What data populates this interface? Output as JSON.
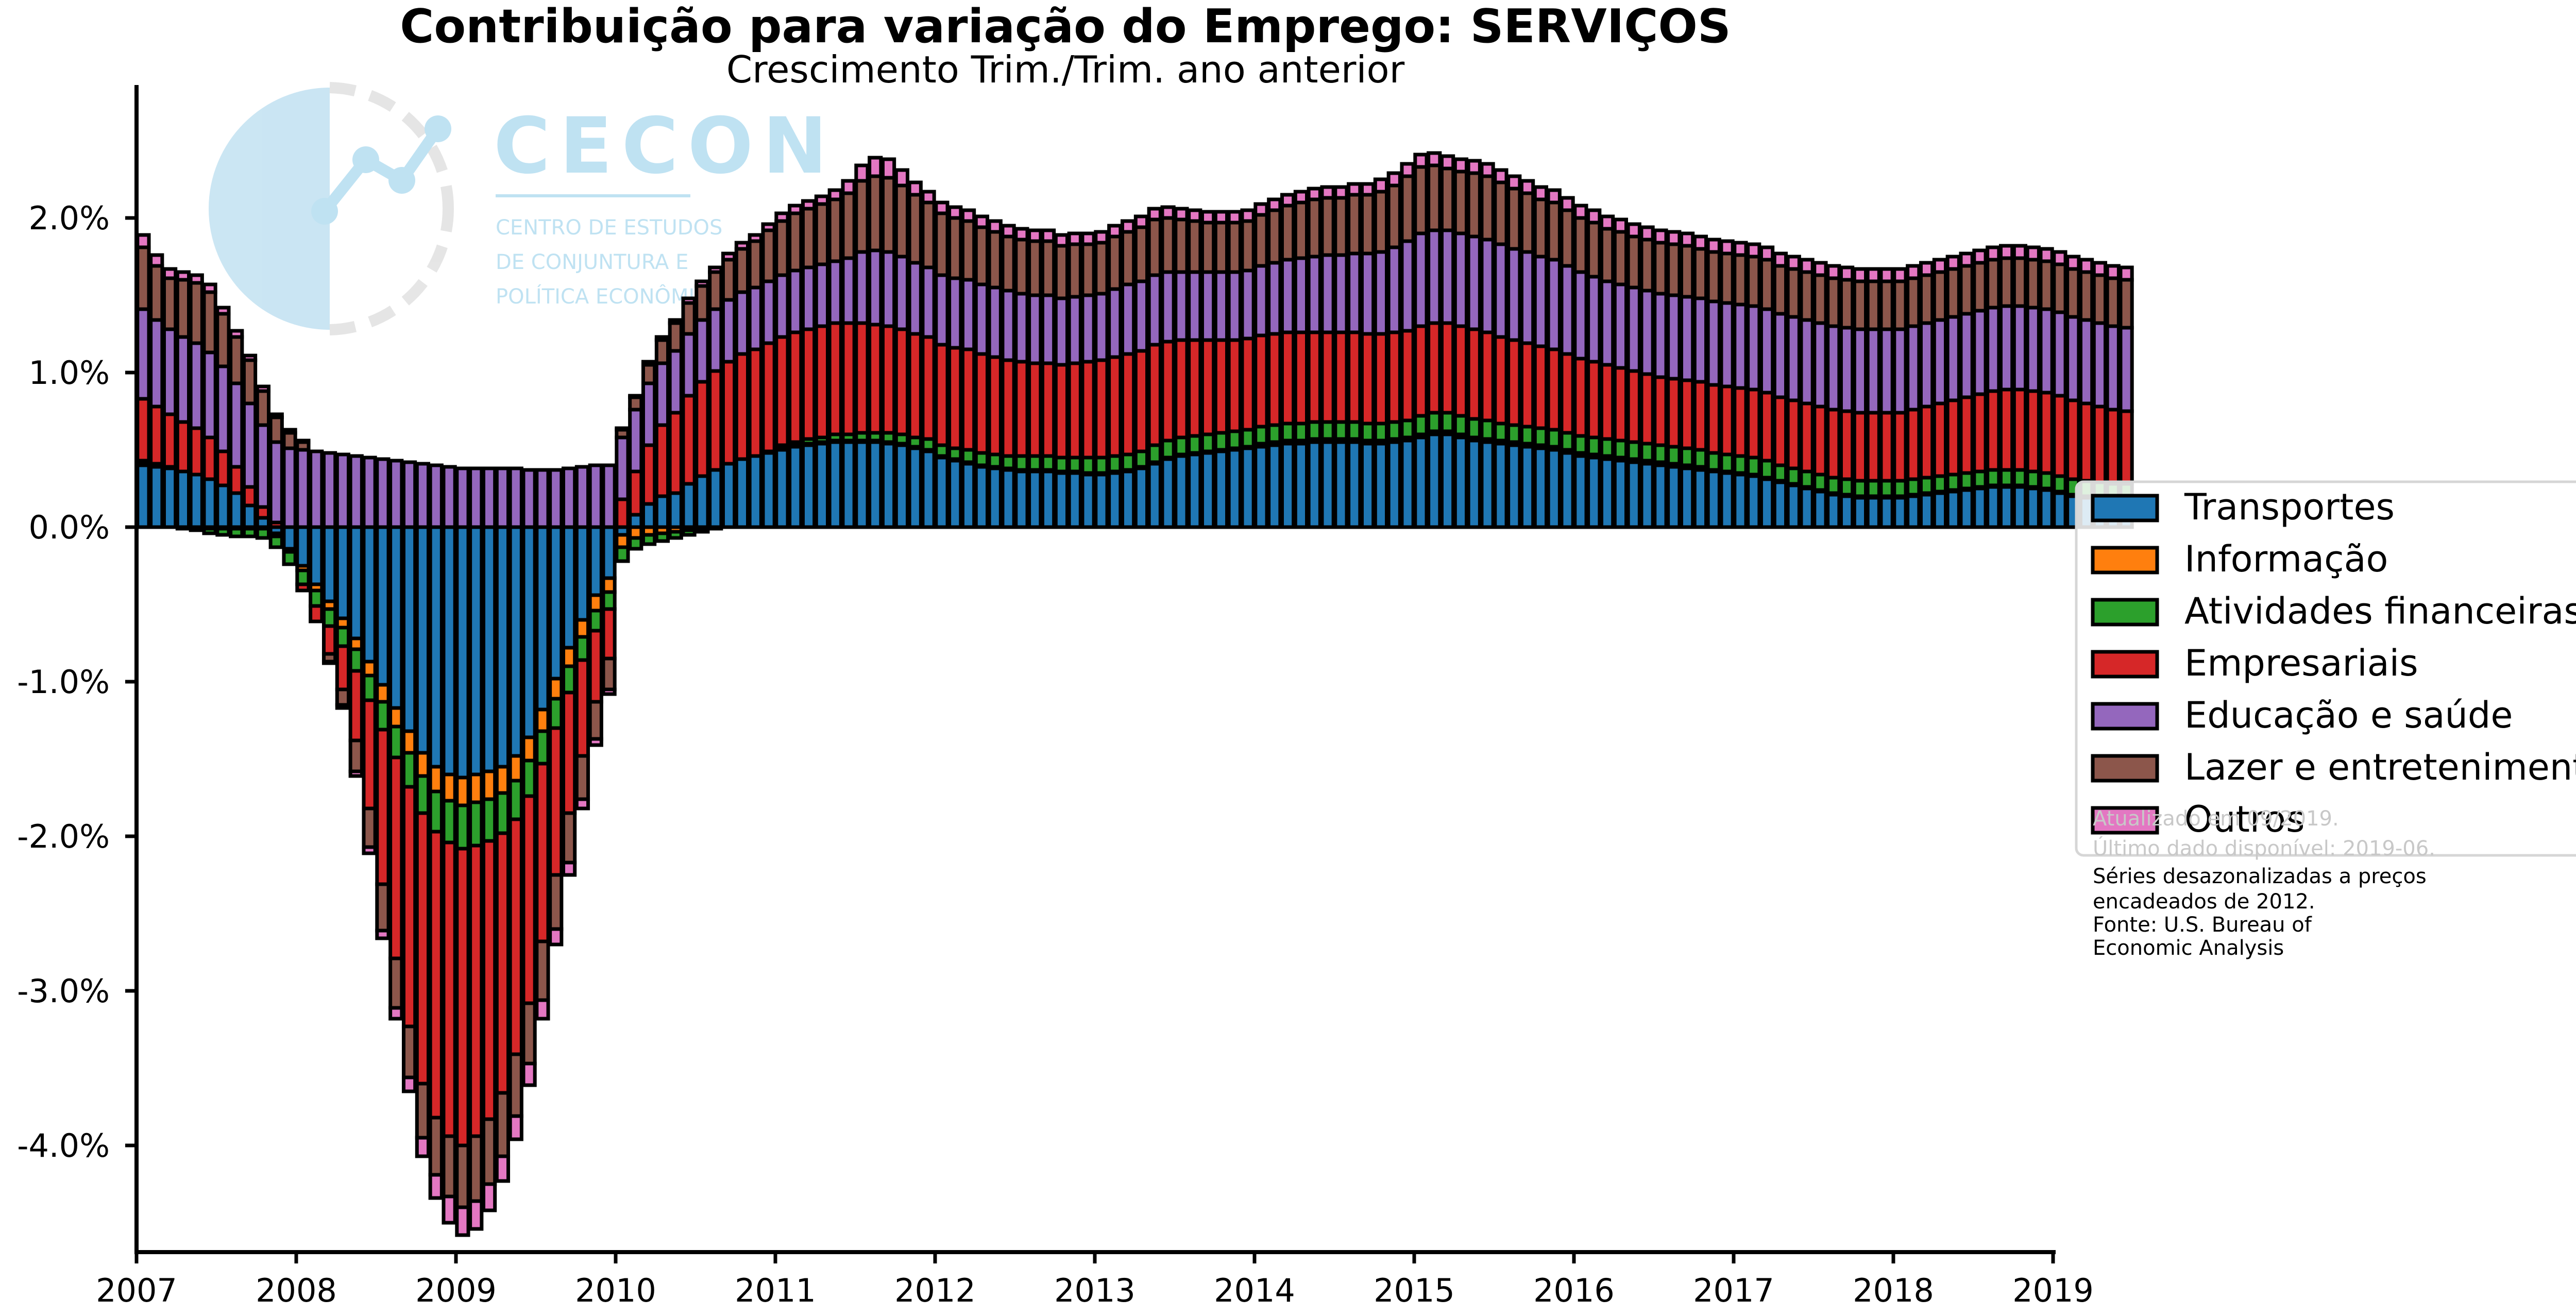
{
  "logo": {
    "name": "CECON",
    "lines": [
      "CENTRO DE ESTUDOS",
      "DE CONJUNTURA E",
      "POLÍTICA ECONÔMICA"
    ]
  },
  "notes": {
    "faint": [
      "Atualizado em 09/2019.",
      "Último dado disponível: 2019-06."
    ],
    "lines": [
      "Séries desazonalizadas a preços",
      "encadeados de 2012.",
      "Fonte: U.S. Bureau of",
      "Economic Analysis"
    ]
  },
  "chart_data": {
    "type": "bar",
    "stacked": true,
    "title": "Contribuição para variação do Emprego: SERVIÇOS",
    "subtitle": "Crescimento Trim./Trim. ano anterior",
    "frequency": "monthly",
    "start": "2007-01",
    "end": "2019-06",
    "x_ticks": [
      "2007",
      "2008",
      "2009",
      "2010",
      "2011",
      "2012",
      "2013",
      "2014",
      "2015",
      "2016",
      "2017",
      "2018",
      "2019"
    ],
    "y_ticks": [
      "2.0%",
      "1.0%",
      "0.0%",
      "-1.0%",
      "-2.0%",
      "-3.0%",
      "-4.0%"
    ],
    "y_tick_values": [
      2.0,
      1.0,
      0.0,
      -1.0,
      -2.0,
      -3.0,
      -4.0
    ],
    "ylim": [
      -4.7,
      2.85
    ],
    "legend_position": "right",
    "series_colors": [
      "#1f77b4",
      "#ff7f0e",
      "#2ca02c",
      "#d62728",
      "#9467bd",
      "#8c564b",
      "#e377c2"
    ],
    "series": [
      {
        "name": "Transportes",
        "values": [
          0.4,
          0.39,
          0.38,
          0.36,
          0.34,
          0.31,
          0.27,
          0.22,
          0.14,
          0.06,
          -0.04,
          -0.14,
          -0.25,
          -0.37,
          -0.48,
          -0.59,
          -0.72,
          -0.87,
          -1.02,
          -1.17,
          -1.32,
          -1.46,
          -1.55,
          -1.6,
          -1.62,
          -1.6,
          -1.58,
          -1.55,
          -1.48,
          -1.36,
          -1.18,
          -0.98,
          -0.78,
          -0.6,
          -0.44,
          -0.33,
          -0.05,
          0.08,
          0.15,
          0.2,
          0.22,
          0.28,
          0.33,
          0.37,
          0.41,
          0.44,
          0.46,
          0.48,
          0.5,
          0.52,
          0.53,
          0.54,
          0.55,
          0.55,
          0.55,
          0.55,
          0.54,
          0.53,
          0.51,
          0.49,
          0.45,
          0.43,
          0.41,
          0.39,
          0.38,
          0.37,
          0.36,
          0.36,
          0.36,
          0.35,
          0.35,
          0.34,
          0.34,
          0.35,
          0.36,
          0.38,
          0.41,
          0.44,
          0.46,
          0.47,
          0.48,
          0.49,
          0.5,
          0.51,
          0.52,
          0.53,
          0.54,
          0.54,
          0.55,
          0.55,
          0.55,
          0.55,
          0.54,
          0.54,
          0.55,
          0.56,
          0.58,
          0.6,
          0.6,
          0.58,
          0.56,
          0.55,
          0.54,
          0.53,
          0.52,
          0.51,
          0.5,
          0.48,
          0.46,
          0.45,
          0.44,
          0.43,
          0.42,
          0.41,
          0.4,
          0.39,
          0.38,
          0.37,
          0.36,
          0.35,
          0.34,
          0.33,
          0.31,
          0.29,
          0.27,
          0.25,
          0.23,
          0.21,
          0.2,
          0.19,
          0.19,
          0.19,
          0.19,
          0.2,
          0.21,
          0.22,
          0.23,
          0.24,
          0.25,
          0.26,
          0.26,
          0.26,
          0.25,
          0.24,
          0.22,
          0.2,
          0.19,
          0.18,
          0.17,
          0.17
        ]
      },
      {
        "name": "Informação",
        "values": [
          0.01,
          0.01,
          0.01,
          0.0,
          0.0,
          -0.01,
          -0.01,
          -0.01,
          -0.01,
          -0.01,
          -0.02,
          -0.02,
          -0.03,
          -0.04,
          -0.05,
          -0.06,
          -0.07,
          -0.09,
          -0.11,
          -0.12,
          -0.14,
          -0.15,
          -0.16,
          -0.17,
          -0.18,
          -0.18,
          -0.18,
          -0.17,
          -0.16,
          -0.15,
          -0.14,
          -0.13,
          -0.12,
          -0.11,
          -0.1,
          -0.09,
          -0.08,
          -0.07,
          -0.05,
          -0.04,
          -0.03,
          -0.02,
          -0.01,
          0.0,
          0.0,
          0.0,
          0.0,
          0.0,
          0.01,
          0.01,
          0.01,
          0.01,
          0.01,
          0.01,
          0.01,
          0.01,
          0.01,
          0.01,
          0.01,
          0.01,
          0.01,
          0.01,
          0.01,
          0.01,
          0.01,
          0.01,
          0.01,
          0.01,
          0.01,
          0.01,
          0.01,
          0.01,
          0.01,
          0.01,
          0.01,
          0.01,
          0.01,
          0.01,
          0.01,
          0.01,
          0.01,
          0.01,
          0.01,
          0.01,
          0.02,
          0.02,
          0.02,
          0.02,
          0.02,
          0.02,
          0.02,
          0.02,
          0.02,
          0.02,
          0.02,
          0.02,
          0.02,
          0.02,
          0.02,
          0.02,
          0.02,
          0.02,
          0.02,
          0.02,
          0.02,
          0.02,
          0.02,
          0.02,
          0.02,
          0.02,
          0.02,
          0.02,
          0.02,
          0.02,
          0.02,
          0.02,
          0.02,
          0.02,
          0.01,
          0.01,
          0.01,
          0.01,
          0.01,
          0.01,
          0.01,
          0.01,
          0.01,
          0.01,
          0.01,
          0.01,
          0.01,
          0.01,
          0.01,
          0.01,
          0.01,
          0.01,
          0.01,
          0.01,
          0.01,
          0.01,
          0.01,
          0.01,
          0.01,
          0.01,
          0.01,
          0.01,
          0.01,
          0.01,
          0.01,
          0.01
        ]
      },
      {
        "name": "Atividades financeiras",
        "values": [
          0.02,
          0.01,
          0.0,
          -0.01,
          -0.02,
          -0.03,
          -0.04,
          -0.05,
          -0.05,
          -0.06,
          -0.07,
          -0.08,
          -0.09,
          -0.1,
          -0.11,
          -0.12,
          -0.14,
          -0.16,
          -0.18,
          -0.2,
          -0.22,
          -0.24,
          -0.26,
          -0.27,
          -0.28,
          -0.28,
          -0.27,
          -0.26,
          -0.25,
          -0.23,
          -0.21,
          -0.19,
          -0.17,
          -0.15,
          -0.13,
          -0.11,
          -0.09,
          -0.07,
          -0.06,
          -0.05,
          -0.04,
          -0.03,
          -0.02,
          -0.01,
          0.0,
          0.0,
          0.0,
          0.01,
          0.02,
          0.02,
          0.03,
          0.03,
          0.04,
          0.04,
          0.05,
          0.05,
          0.06,
          0.06,
          0.06,
          0.07,
          0.07,
          0.07,
          0.08,
          0.08,
          0.08,
          0.08,
          0.09,
          0.09,
          0.09,
          0.09,
          0.09,
          0.1,
          0.1,
          0.1,
          0.1,
          0.1,
          0.11,
          0.11,
          0.11,
          0.11,
          0.11,
          0.11,
          0.11,
          0.11,
          0.11,
          0.11,
          0.11,
          0.11,
          0.11,
          0.11,
          0.11,
          0.11,
          0.11,
          0.11,
          0.11,
          0.11,
          0.12,
          0.12,
          0.12,
          0.12,
          0.12,
          0.12,
          0.11,
          0.11,
          0.11,
          0.11,
          0.11,
          0.11,
          0.11,
          0.11,
          0.11,
          0.11,
          0.11,
          0.11,
          0.11,
          0.11,
          0.11,
          0.11,
          0.11,
          0.11,
          0.11,
          0.11,
          0.11,
          0.1,
          0.1,
          0.1,
          0.1,
          0.1,
          0.1,
          0.1,
          0.1,
          0.1,
          0.1,
          0.1,
          0.1,
          0.1,
          0.1,
          0.1,
          0.1,
          0.1,
          0.1,
          0.1,
          0.1,
          0.1,
          0.1,
          0.1,
          0.1,
          0.1,
          0.1,
          0.1
        ]
      },
      {
        "name": "Empresariais",
        "values": [
          0.4,
          0.37,
          0.34,
          0.32,
          0.3,
          0.27,
          0.22,
          0.17,
          0.12,
          0.07,
          0.03,
          0.0,
          -0.04,
          -0.1,
          -0.18,
          -0.28,
          -0.45,
          -0.7,
          -1.0,
          -1.3,
          -1.55,
          -1.75,
          -1.85,
          -1.9,
          -1.92,
          -1.88,
          -1.8,
          -1.68,
          -1.52,
          -1.34,
          -1.15,
          -0.95,
          -0.78,
          -0.62,
          -0.46,
          -0.32,
          0.18,
          0.28,
          0.38,
          0.46,
          0.52,
          0.57,
          0.61,
          0.64,
          0.66,
          0.68,
          0.69,
          0.7,
          0.7,
          0.71,
          0.71,
          0.72,
          0.72,
          0.72,
          0.71,
          0.7,
          0.69,
          0.68,
          0.67,
          0.66,
          0.65,
          0.65,
          0.65,
          0.64,
          0.63,
          0.62,
          0.61,
          0.6,
          0.6,
          0.6,
          0.61,
          0.62,
          0.63,
          0.64,
          0.65,
          0.65,
          0.65,
          0.64,
          0.63,
          0.62,
          0.61,
          0.6,
          0.59,
          0.59,
          0.59,
          0.59,
          0.59,
          0.59,
          0.58,
          0.58,
          0.58,
          0.58,
          0.58,
          0.58,
          0.58,
          0.58,
          0.58,
          0.58,
          0.58,
          0.58,
          0.58,
          0.57,
          0.56,
          0.55,
          0.54,
          0.53,
          0.52,
          0.51,
          0.5,
          0.49,
          0.48,
          0.47,
          0.46,
          0.45,
          0.44,
          0.44,
          0.44,
          0.44,
          0.44,
          0.44,
          0.44,
          0.44,
          0.44,
          0.44,
          0.44,
          0.44,
          0.44,
          0.44,
          0.44,
          0.44,
          0.44,
          0.44,
          0.44,
          0.45,
          0.46,
          0.47,
          0.48,
          0.49,
          0.5,
          0.51,
          0.52,
          0.52,
          0.52,
          0.52,
          0.52,
          0.51,
          0.5,
          0.49,
          0.48,
          0.47
        ]
      },
      {
        "name": "Educação e saúde",
        "values": [
          0.58,
          0.56,
          0.55,
          0.55,
          0.55,
          0.55,
          0.55,
          0.54,
          0.54,
          0.53,
          0.52,
          0.51,
          0.5,
          0.49,
          0.48,
          0.47,
          0.46,
          0.45,
          0.44,
          0.43,
          0.42,
          0.41,
          0.4,
          0.39,
          0.38,
          0.38,
          0.38,
          0.38,
          0.38,
          0.37,
          0.37,
          0.37,
          0.38,
          0.39,
          0.4,
          0.4,
          0.4,
          0.4,
          0.4,
          0.4,
          0.4,
          0.4,
          0.4,
          0.4,
          0.4,
          0.4,
          0.4,
          0.4,
          0.4,
          0.4,
          0.4,
          0.4,
          0.4,
          0.42,
          0.46,
          0.48,
          0.48,
          0.47,
          0.46,
          0.45,
          0.45,
          0.45,
          0.45,
          0.45,
          0.45,
          0.45,
          0.44,
          0.44,
          0.44,
          0.43,
          0.43,
          0.43,
          0.43,
          0.44,
          0.45,
          0.45,
          0.45,
          0.45,
          0.44,
          0.44,
          0.44,
          0.44,
          0.44,
          0.44,
          0.45,
          0.46,
          0.47,
          0.48,
          0.49,
          0.5,
          0.5,
          0.51,
          0.52,
          0.53,
          0.55,
          0.58,
          0.6,
          0.6,
          0.6,
          0.6,
          0.6,
          0.6,
          0.6,
          0.59,
          0.59,
          0.58,
          0.58,
          0.57,
          0.56,
          0.55,
          0.54,
          0.54,
          0.54,
          0.54,
          0.54,
          0.54,
          0.54,
          0.54,
          0.54,
          0.54,
          0.54,
          0.54,
          0.54,
          0.54,
          0.54,
          0.54,
          0.54,
          0.54,
          0.54,
          0.54,
          0.54,
          0.54,
          0.54,
          0.54,
          0.54,
          0.54,
          0.54,
          0.54,
          0.54,
          0.54,
          0.54,
          0.54,
          0.54,
          0.54,
          0.54,
          0.54,
          0.54,
          0.54,
          0.54,
          0.54
        ]
      },
      {
        "name": "Lazer e entretenimento",
        "values": [
          0.4,
          0.35,
          0.33,
          0.37,
          0.39,
          0.39,
          0.34,
          0.3,
          0.28,
          0.22,
          0.16,
          0.1,
          0.05,
          0.0,
          -0.05,
          -0.1,
          -0.2,
          -0.25,
          -0.3,
          -0.32,
          -0.33,
          -0.35,
          -0.37,
          -0.39,
          -0.4,
          -0.42,
          -0.42,
          -0.41,
          -0.4,
          -0.39,
          -0.38,
          -0.35,
          -0.32,
          -0.28,
          -0.24,
          -0.2,
          0.05,
          0.08,
          0.12,
          0.15,
          0.18,
          0.2,
          0.22,
          0.24,
          0.26,
          0.28,
          0.3,
          0.33,
          0.35,
          0.37,
          0.38,
          0.39,
          0.4,
          0.42,
          0.46,
          0.48,
          0.48,
          0.46,
          0.44,
          0.42,
          0.4,
          0.39,
          0.38,
          0.37,
          0.36,
          0.35,
          0.35,
          0.35,
          0.35,
          0.34,
          0.34,
          0.33,
          0.33,
          0.34,
          0.34,
          0.35,
          0.36,
          0.35,
          0.34,
          0.33,
          0.32,
          0.32,
          0.32,
          0.32,
          0.33,
          0.34,
          0.35,
          0.36,
          0.37,
          0.37,
          0.37,
          0.38,
          0.38,
          0.39,
          0.4,
          0.42,
          0.43,
          0.42,
          0.4,
          0.4,
          0.41,
          0.41,
          0.4,
          0.39,
          0.38,
          0.37,
          0.37,
          0.36,
          0.35,
          0.35,
          0.34,
          0.34,
          0.33,
          0.33,
          0.33,
          0.33,
          0.33,
          0.32,
          0.32,
          0.32,
          0.32,
          0.32,
          0.32,
          0.31,
          0.31,
          0.31,
          0.31,
          0.31,
          0.31,
          0.31,
          0.31,
          0.31,
          0.31,
          0.31,
          0.31,
          0.31,
          0.31,
          0.31,
          0.31,
          0.31,
          0.31,
          0.31,
          0.31,
          0.31,
          0.31,
          0.31,
          0.31,
          0.31,
          0.31,
          0.31
        ]
      },
      {
        "name": "Outros",
        "values": [
          0.08,
          0.07,
          0.06,
          0.05,
          0.05,
          0.05,
          0.04,
          0.04,
          0.03,
          0.03,
          0.02,
          0.02,
          0.01,
          0.0,
          -0.01,
          -0.02,
          -0.03,
          -0.04,
          -0.05,
          -0.07,
          -0.09,
          -0.12,
          -0.15,
          -0.17,
          -0.18,
          -0.18,
          -0.17,
          -0.16,
          -0.15,
          -0.14,
          -0.12,
          -0.1,
          -0.08,
          -0.06,
          -0.04,
          -0.03,
          0.01,
          0.01,
          0.02,
          0.02,
          0.02,
          0.03,
          0.03,
          0.03,
          0.04,
          0.04,
          0.04,
          0.04,
          0.05,
          0.05,
          0.05,
          0.05,
          0.06,
          0.08,
          0.1,
          0.12,
          0.12,
          0.1,
          0.08,
          0.07,
          0.07,
          0.07,
          0.07,
          0.07,
          0.07,
          0.07,
          0.07,
          0.07,
          0.07,
          0.07,
          0.07,
          0.07,
          0.07,
          0.07,
          0.07,
          0.07,
          0.07,
          0.07,
          0.07,
          0.07,
          0.07,
          0.07,
          0.07,
          0.07,
          0.07,
          0.07,
          0.07,
          0.07,
          0.07,
          0.07,
          0.07,
          0.07,
          0.07,
          0.08,
          0.08,
          0.08,
          0.08,
          0.08,
          0.08,
          0.08,
          0.08,
          0.08,
          0.08,
          0.08,
          0.08,
          0.08,
          0.08,
          0.08,
          0.08,
          0.08,
          0.08,
          0.08,
          0.08,
          0.08,
          0.08,
          0.08,
          0.08,
          0.08,
          0.08,
          0.08,
          0.08,
          0.08,
          0.08,
          0.08,
          0.08,
          0.08,
          0.08,
          0.08,
          0.08,
          0.08,
          0.08,
          0.08,
          0.08,
          0.08,
          0.08,
          0.08,
          0.08,
          0.08,
          0.08,
          0.08,
          0.08,
          0.08,
          0.08,
          0.08,
          0.08,
          0.08,
          0.08,
          0.08,
          0.08,
          0.08
        ]
      }
    ]
  }
}
